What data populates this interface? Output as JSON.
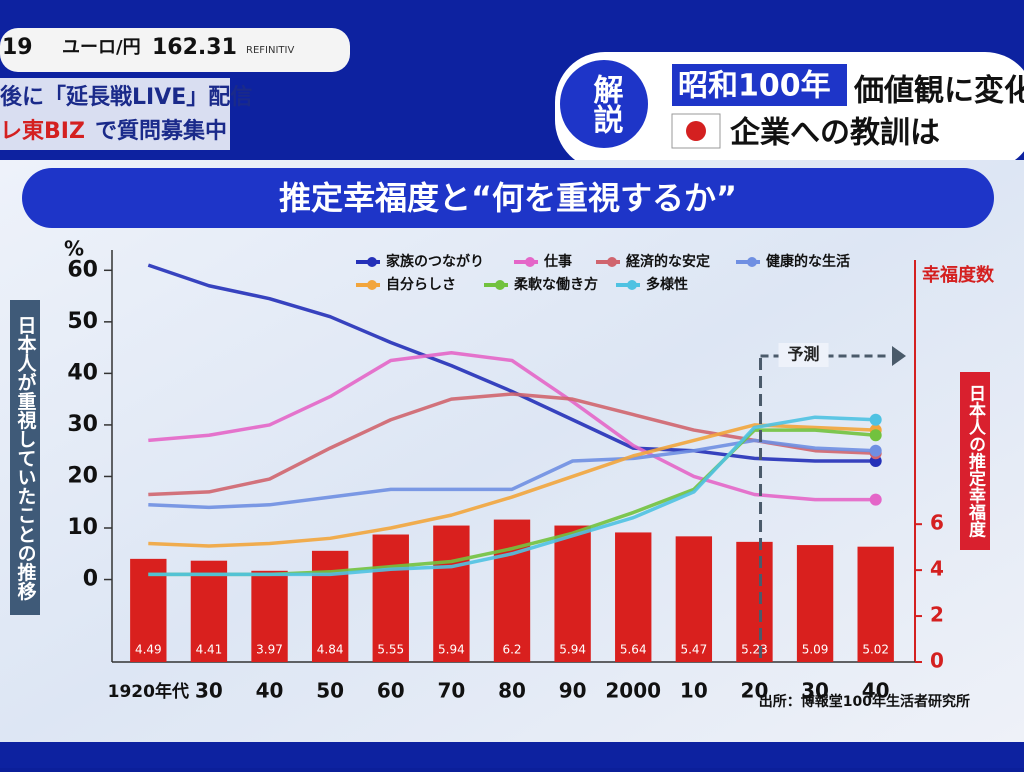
{
  "header": {
    "ticker_left": "19",
    "pair": "ユーロ/円",
    "rate": "162.31",
    "provider": "REFINITIV",
    "notice1": "後に「延長戦LIVE」配信",
    "notice2_brand": "レ東BIZ",
    "notice2_rest": "で質問募集中",
    "badge": "解説",
    "headline1_tag": "昭和100年",
    "headline1_rest": "価値観に変化",
    "headline2": "企業への教訓は"
  },
  "chart_data": {
    "type": "bar_line",
    "title": "推定幸福度と“何を重視するか”",
    "y_unit": "%",
    "y_label": "日本人が重視していたことの推移",
    "y2_title": "幸福度数",
    "y2_label": "日本人の推定幸福度",
    "annotation": "予測",
    "source": "出所：博報堂100年生活者研究所",
    "categories": [
      "1920年代",
      "30",
      "40",
      "50",
      "60",
      "70",
      "80",
      "90",
      "2000",
      "10",
      "20",
      "30",
      "40"
    ],
    "bars": {
      "color": "#d9201e",
      "axis": "y2",
      "values": [
        4.49,
        4.41,
        3.97,
        4.84,
        5.55,
        5.94,
        6.2,
        5.94,
        5.64,
        5.47,
        5.23,
        5.09,
        5.02
      ]
    },
    "series": [
      {
        "name": "家族のつながり",
        "color": "#2430b8",
        "values": [
          61,
          57,
          54.5,
          51,
          46,
          41.5,
          36.5,
          31,
          25.5,
          25,
          23.5,
          23,
          23
        ]
      },
      {
        "name": "仕事",
        "color": "#e466c8",
        "values": [
          27,
          28,
          30,
          35.5,
          42.5,
          44,
          42.5,
          34.5,
          26,
          20,
          16.5,
          15.5,
          15.5
        ]
      },
      {
        "name": "経済的な安定",
        "color": "#d0656e",
        "values": [
          16.5,
          17,
          19.5,
          25.5,
          31,
          35,
          36,
          35,
          32,
          29,
          27,
          25,
          24.5
        ]
      },
      {
        "name": "健康的な生活",
        "color": "#6f8fe2",
        "values": [
          14.5,
          14,
          14.5,
          16,
          17.5,
          17.5,
          17.5,
          23,
          23.5,
          25,
          27,
          25.5,
          25
        ]
      },
      {
        "name": "自分らしさ",
        "color": "#f2a53c",
        "values": [
          7,
          6.5,
          7,
          8,
          10,
          12.5,
          16,
          20,
          24,
          27,
          30,
          29.5,
          29
        ]
      },
      {
        "name": "柔軟な働き方",
        "color": "#72c23e",
        "values": [
          1,
          1,
          1,
          1.5,
          2.5,
          3.5,
          6,
          9,
          13,
          17.5,
          29,
          29,
          28
        ]
      },
      {
        "name": "多様性",
        "color": "#4fc2e2",
        "values": [
          1,
          1,
          1,
          1,
          2,
          2.5,
          5,
          8.5,
          12,
          17,
          29.5,
          31.5,
          31
        ]
      }
    ],
    "ylim": [
      -16,
      62
    ],
    "yticks": [
      0,
      10,
      20,
      30,
      40,
      50,
      60
    ],
    "y2lim": [
      0,
      17.5
    ],
    "y2ticks": [
      0,
      2,
      4,
      6
    ],
    "forecast_from": 10.6
  }
}
